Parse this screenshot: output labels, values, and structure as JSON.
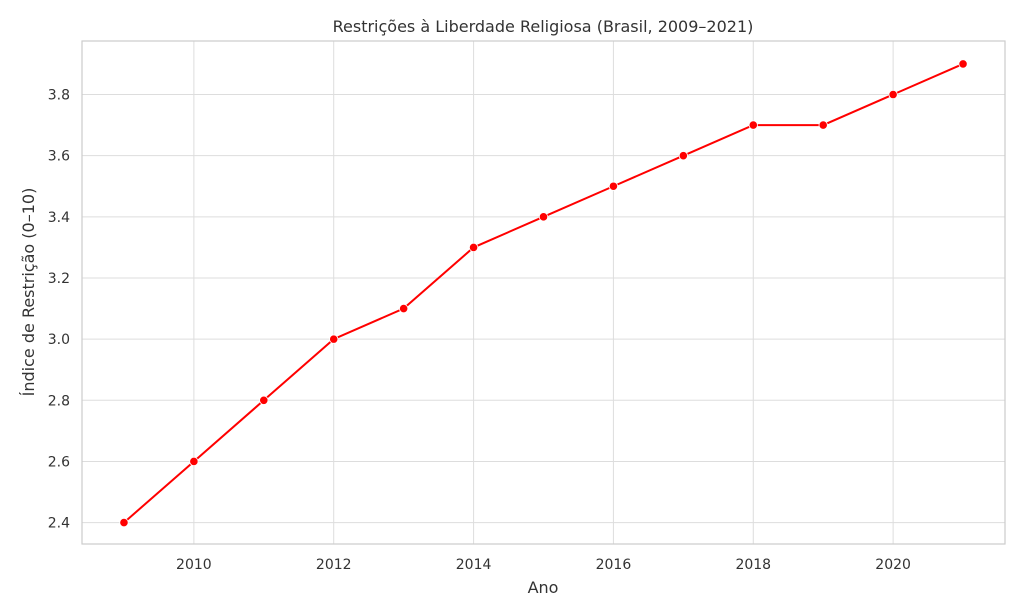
{
  "chart_data": {
    "type": "line",
    "title": "Restrições à Liberdade Religiosa (Brasil, 2009–2021)",
    "xlabel": "Ano",
    "ylabel": "Índice de Restrição (0–10)",
    "x": [
      2009,
      2010,
      2011,
      2012,
      2013,
      2014,
      2015,
      2016,
      2017,
      2018,
      2019,
      2020,
      2021
    ],
    "series": [
      {
        "values": [
          2.4,
          2.6,
          2.8,
          3.0,
          3.1,
          3.3,
          3.4,
          3.5,
          3.6,
          3.7,
          3.7,
          3.8,
          3.9
        ],
        "color": "#ff0000"
      }
    ],
    "xlim": [
      2008.4,
      2021.6
    ],
    "ylim": [
      2.33,
      3.975
    ],
    "xticks": [
      2010,
      2012,
      2014,
      2016,
      2018,
      2020
    ],
    "yticks": [
      2.4,
      2.6,
      2.8,
      3.0,
      3.2,
      3.4,
      3.6,
      3.8
    ],
    "ytick_labels": [
      "2.4",
      "2.6",
      "2.8",
      "3.0",
      "3.2",
      "3.4",
      "3.6",
      "3.8"
    ],
    "grid": true,
    "legend": "none"
  }
}
